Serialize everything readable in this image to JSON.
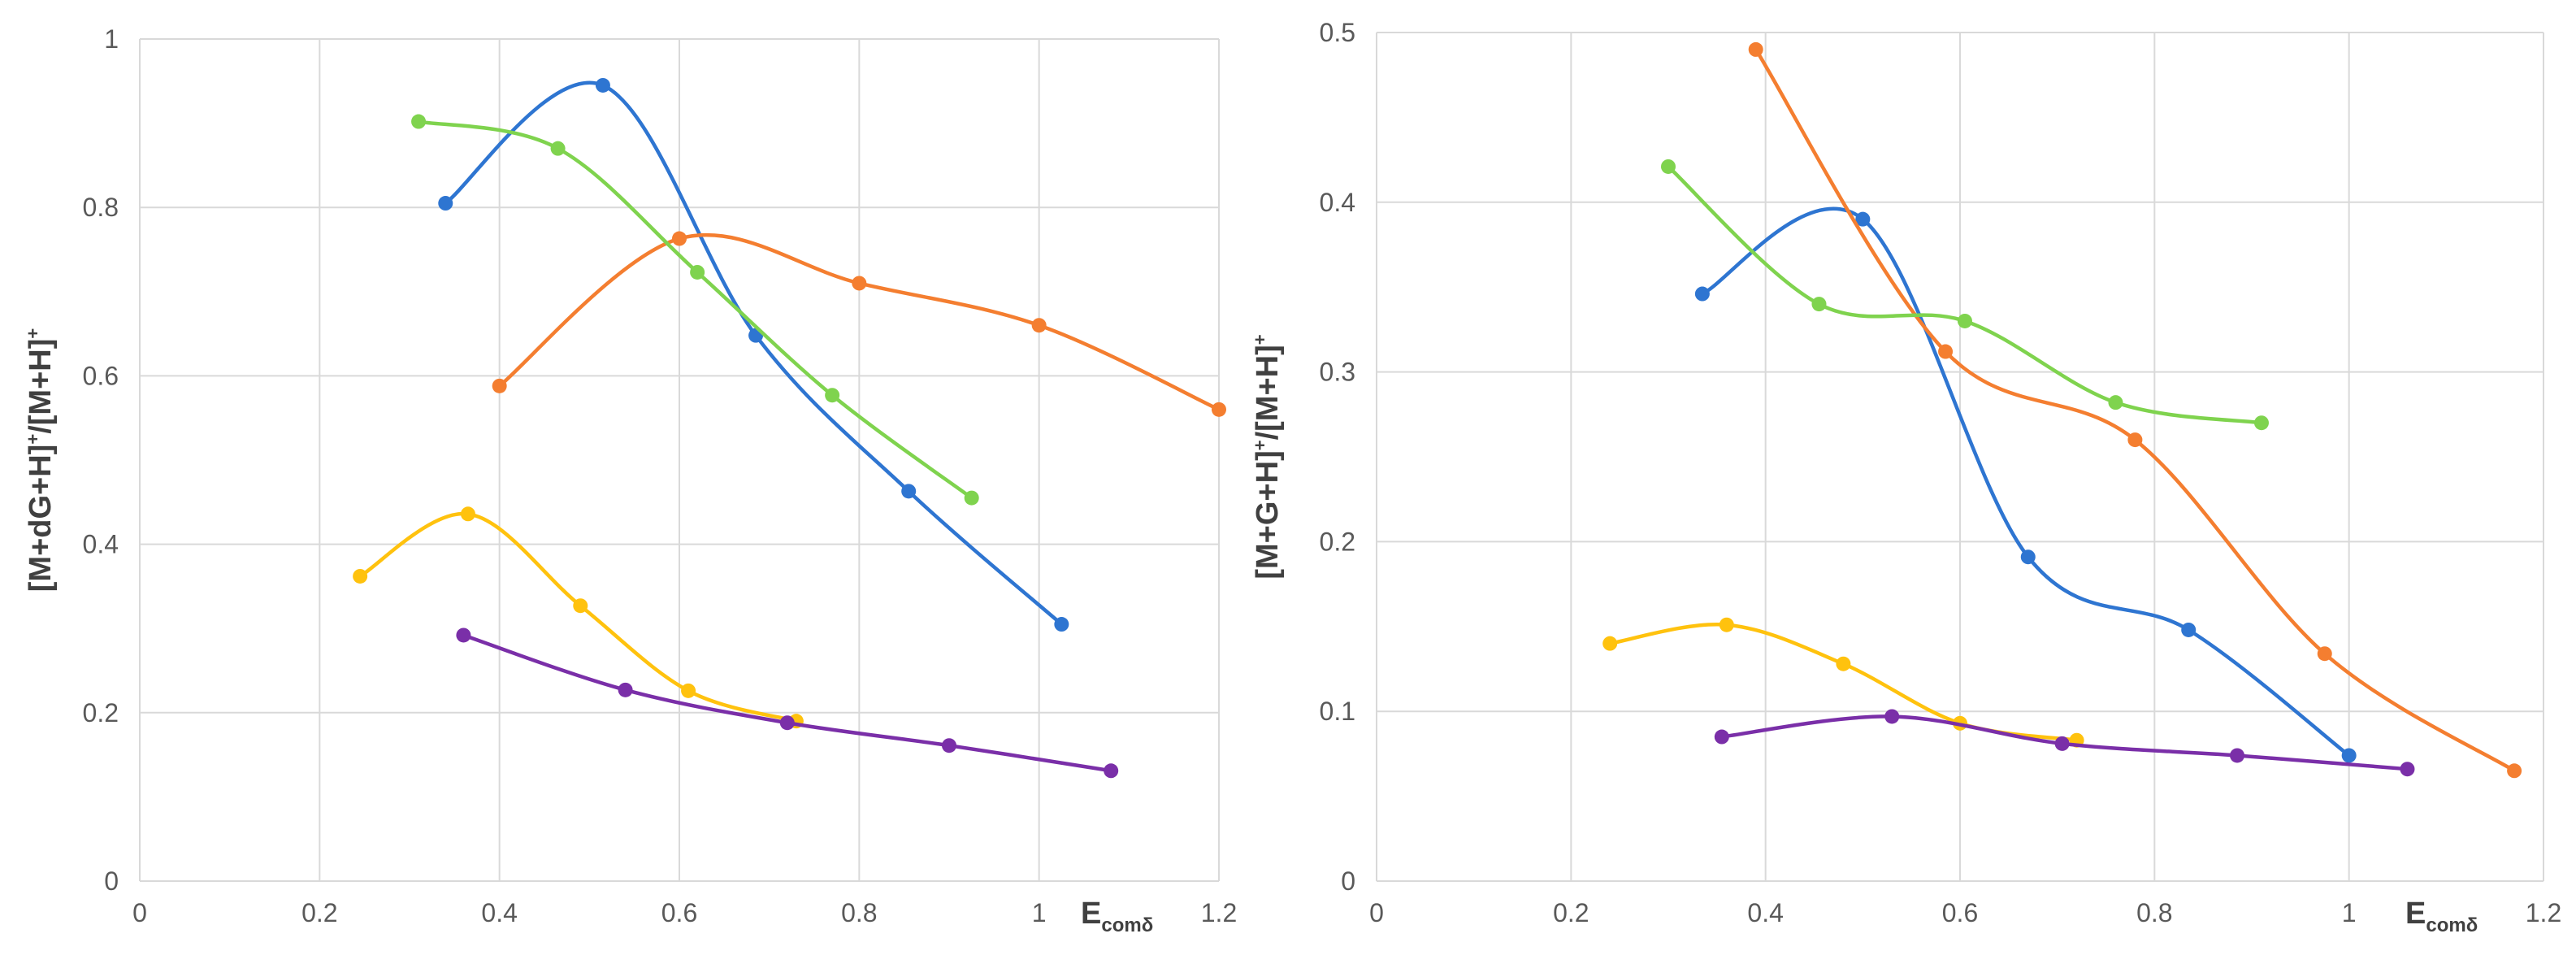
{
  "chart_data": [
    {
      "type": "line",
      "title": "",
      "xlabel_main": "E",
      "xlabel_sub": "comδ",
      "ylabel_parts": [
        "[M+dG+H]",
        "+",
        "/[M+H]",
        "+"
      ],
      "xlim": [
        0,
        1.2
      ],
      "ylim": [
        0,
        1
      ],
      "xticks": [
        "0",
        "0.2",
        "0.4",
        "0.6",
        "0.8",
        "1",
        "1.2"
      ],
      "yticks": [
        "0",
        "0.2",
        "0.4",
        "0.6",
        "0.8",
        "1"
      ],
      "grid": true,
      "series": [
        {
          "name": "blue",
          "color": "#2E75D1",
          "x": [
            0.34,
            0.515,
            0.685,
            0.855,
            1.025
          ],
          "y": [
            0.805,
            0.945,
            0.648,
            0.463,
            0.305
          ]
        },
        {
          "name": "orange",
          "color": "#F47E30",
          "x": [
            0.4,
            0.6,
            0.8,
            1.0,
            1.2
          ],
          "y": [
            0.588,
            0.763,
            0.71,
            0.66,
            0.56
          ]
        },
        {
          "name": "green",
          "color": "#7FD34E",
          "x": [
            0.31,
            0.465,
            0.62,
            0.77,
            0.925
          ],
          "y": [
            0.902,
            0.87,
            0.723,
            0.577,
            0.455
          ]
        },
        {
          "name": "yellow",
          "color": "#FFC20E",
          "x": [
            0.245,
            0.365,
            0.49,
            0.61,
            0.73
          ],
          "y": [
            0.362,
            0.436,
            0.327,
            0.226,
            0.19
          ]
        },
        {
          "name": "purple",
          "color": "#7A2FA8",
          "x": [
            0.36,
            0.54,
            0.72,
            0.9,
            1.08
          ],
          "y": [
            0.292,
            0.227,
            0.188,
            0.161,
            0.131
          ]
        }
      ]
    },
    {
      "type": "line",
      "title": "",
      "xlabel_main": "E",
      "xlabel_sub": "comδ",
      "ylabel_parts": [
        "[M+G+H]",
        "+",
        "/[M+H]",
        "+"
      ],
      "xlim": [
        0,
        1.2
      ],
      "ylim": [
        0,
        0.5
      ],
      "xticks": [
        "0",
        "0.2",
        "0.4",
        "0.6",
        "0.8",
        "1",
        "1.2"
      ],
      "yticks": [
        "0",
        "0.1",
        "0.2",
        "0.3",
        "0.4",
        "0.5"
      ],
      "grid": true,
      "series": [
        {
          "name": "blue",
          "color": "#2E75D1",
          "x": [
            0.335,
            0.5,
            0.67,
            0.835,
            1.0
          ],
          "y": [
            0.346,
            0.39,
            0.191,
            0.148,
            0.074
          ]
        },
        {
          "name": "orange",
          "color": "#F47E30",
          "x": [
            0.39,
            0.585,
            0.78,
            0.975,
            1.17
          ],
          "y": [
            0.49,
            0.312,
            0.26,
            0.134,
            0.065
          ]
        },
        {
          "name": "green",
          "color": "#7FD34E",
          "x": [
            0.3,
            0.455,
            0.605,
            0.76,
            0.91
          ],
          "y": [
            0.421,
            0.34,
            0.33,
            0.282,
            0.27
          ]
        },
        {
          "name": "yellow",
          "color": "#FFC20E",
          "x": [
            0.24,
            0.36,
            0.48,
            0.6,
            0.72
          ],
          "y": [
            0.14,
            0.151,
            0.128,
            0.093,
            0.083
          ]
        },
        {
          "name": "purple",
          "color": "#7A2FA8",
          "x": [
            0.355,
            0.53,
            0.705,
            0.885,
            1.06
          ],
          "y": [
            0.085,
            0.097,
            0.081,
            0.074,
            0.066
          ]
        }
      ]
    }
  ]
}
